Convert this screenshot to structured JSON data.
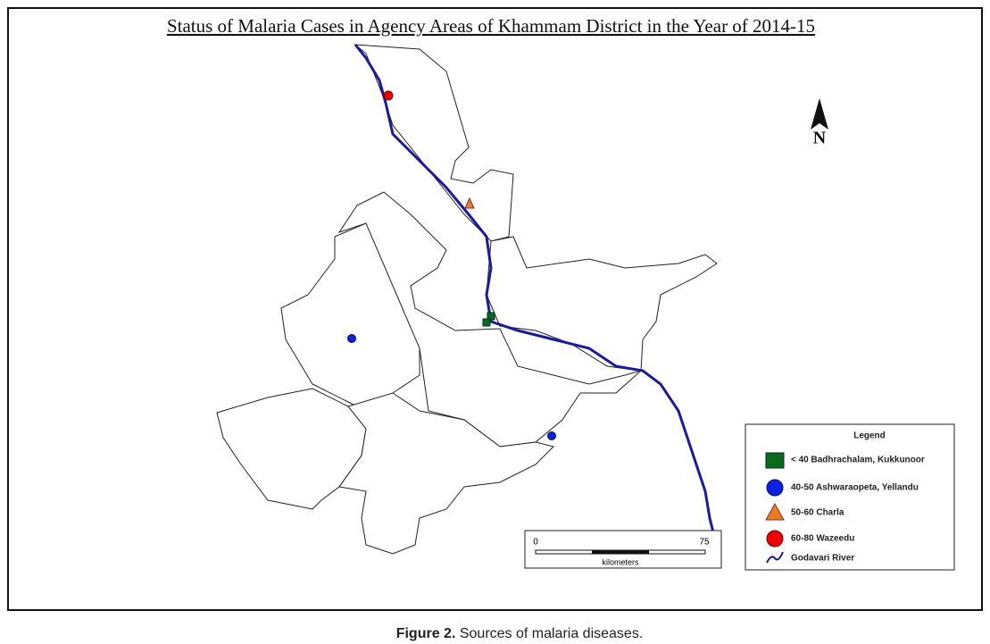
{
  "title": "Status of Malaria Cases in Agency Areas of Khammam District in the Year of 2014-15",
  "north": "N",
  "legend": {
    "title": "Legend",
    "items": [
      "< 40 Badhrachalam, Kukkunoor",
      "40-50 Ashwaraopeta, Yellandu",
      "50-60 Charla",
      "60-80 Wazeedu",
      "Godavari River"
    ]
  },
  "scale_bar": {
    "start": "0",
    "end": "75",
    "unit": "kilometers"
  },
  "caption": {
    "label": "Figure 2.",
    "text": "Sources of malaria diseases."
  }
}
